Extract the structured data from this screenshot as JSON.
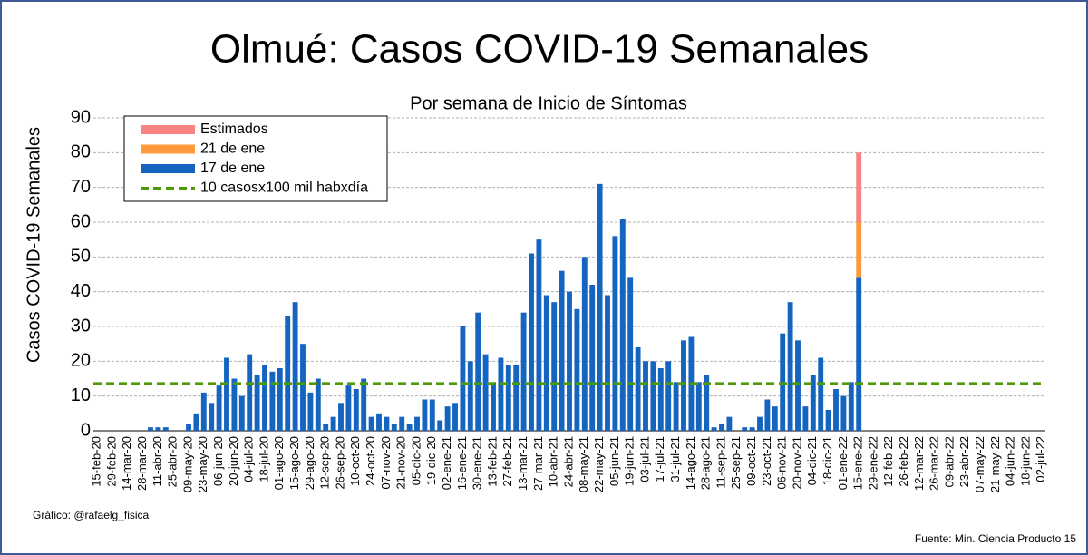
{
  "chart_data": {
    "type": "bar",
    "stacked": true,
    "title": "Olmué: Casos COVID-19 Semanales",
    "subtitle": "Por semana de Inicio de Síntomas",
    "y_label": "Casos COVID-19 Semanales",
    "credit": "Gráfico: @rafaelg_fisica",
    "source": "Fuente: Min. Ciencia Producto 15",
    "categories": [
      "15-feb-20",
      null,
      "29-feb-20",
      null,
      "14-mar-20",
      null,
      "28-mar-20",
      null,
      "11-abr-20",
      null,
      "25-abr-20",
      null,
      "09-may-20",
      null,
      "23-may-20",
      null,
      "06-jun-20",
      null,
      "20-jun-20",
      null,
      "04-jul-20",
      null,
      "18-jul-20",
      null,
      "01-ago-20",
      null,
      "15-ago-20",
      null,
      "29-ago-20",
      null,
      "12-sep-20",
      null,
      "26-sep-20",
      null,
      "10-oct-20",
      null,
      "24-oct-20",
      null,
      "07-nov-20",
      null,
      "21-nov-20",
      null,
      "05-dic-20",
      null,
      "19-dic-20",
      null,
      "02-ene-21",
      null,
      "16-ene-21",
      null,
      "30-ene-21",
      null,
      "13-feb-21",
      null,
      "27-feb-21",
      null,
      "13-mar-21",
      null,
      "27-mar-21",
      null,
      "10-abr-21",
      null,
      "24-abr-21",
      null,
      "08-may-21",
      null,
      "22-may-21",
      null,
      "05-jun-21",
      null,
      "19-jun-21",
      null,
      "03-jul-21",
      null,
      "17-jul-21",
      null,
      "31-jul-21",
      null,
      "14-ago-21",
      null,
      "28-ago-21",
      null,
      "11-sep-21",
      null,
      "25-sep-21",
      null,
      "09-oct-21",
      null,
      "23-oct-21",
      null,
      "06-nov-21",
      null,
      "20-nov-21",
      null,
      "04-dic-21",
      null,
      "18-dic-21",
      null,
      "01-ene-22",
      null,
      "15-ene-22",
      null,
      "29-ene-22",
      null,
      "12-feb-22",
      null,
      "26-feb-22",
      null,
      "12-mar-22",
      null,
      "26-mar-22",
      null,
      "09-abr-22",
      null,
      "23-abr-22",
      null,
      "07-may-22",
      null,
      "21-may-22",
      null,
      "04-jun-22",
      null,
      "18-jun-22",
      null,
      "02-jul-22"
    ],
    "series": [
      {
        "name": "17 de ene",
        "color": "#1565c0",
        "values": [
          0,
          0,
          0,
          0,
          0,
          0,
          0,
          1,
          1,
          1,
          0,
          0,
          2,
          5,
          11,
          8,
          13,
          21,
          15,
          10,
          22,
          16,
          19,
          17,
          18,
          33,
          37,
          25,
          11,
          15,
          2,
          4,
          8,
          13,
          12,
          15,
          4,
          5,
          4,
          2,
          4,
          2,
          4,
          9,
          9,
          3,
          7,
          8,
          30,
          20,
          34,
          22,
          14,
          21,
          19,
          19,
          34,
          51,
          55,
          39,
          37,
          46,
          40,
          35,
          50,
          42,
          71,
          39,
          56,
          61,
          44,
          24,
          20,
          20,
          18,
          20,
          14,
          26,
          27,
          14,
          16,
          1,
          2,
          4,
          0,
          1,
          1,
          4,
          9,
          7,
          28,
          37,
          26,
          7,
          16,
          21,
          6,
          12,
          10,
          14,
          44,
          null,
          null,
          null,
          null,
          null,
          null,
          null,
          null,
          null,
          null,
          null,
          null,
          null,
          null,
          null,
          null,
          null,
          null,
          null,
          null,
          null,
          null,
          null,
          null
        ]
      },
      {
        "name": "21 de ene",
        "color": "#ff9a3c",
        "values": [
          null,
          null,
          null,
          null,
          null,
          null,
          null,
          null,
          null,
          null,
          null,
          null,
          null,
          null,
          null,
          null,
          null,
          null,
          null,
          null,
          null,
          null,
          null,
          null,
          null,
          null,
          null,
          null,
          null,
          null,
          null,
          null,
          null,
          null,
          null,
          null,
          null,
          null,
          null,
          null,
          null,
          null,
          null,
          null,
          null,
          null,
          null,
          null,
          null,
          null,
          null,
          null,
          null,
          null,
          null,
          null,
          null,
          null,
          null,
          null,
          null,
          null,
          null,
          null,
          null,
          null,
          null,
          null,
          null,
          null,
          null,
          null,
          null,
          null,
          null,
          null,
          null,
          null,
          null,
          null,
          null,
          null,
          null,
          null,
          null,
          null,
          null,
          null,
          null,
          null,
          null,
          null,
          null,
          null,
          null,
          null,
          null,
          null,
          null,
          null,
          16,
          null,
          null,
          null,
          null,
          null,
          null,
          null,
          null,
          null,
          null,
          null,
          null,
          null,
          null,
          null,
          null,
          null,
          null,
          null,
          null,
          null,
          null,
          null,
          null
        ]
      },
      {
        "name": "Estimados",
        "color": "#f98383",
        "values": [
          null,
          null,
          null,
          null,
          null,
          null,
          null,
          null,
          null,
          null,
          null,
          null,
          null,
          null,
          null,
          null,
          null,
          null,
          null,
          null,
          null,
          null,
          null,
          null,
          null,
          null,
          null,
          null,
          null,
          null,
          null,
          null,
          null,
          null,
          null,
          null,
          null,
          null,
          null,
          null,
          null,
          null,
          null,
          null,
          null,
          null,
          null,
          null,
          null,
          null,
          null,
          null,
          null,
          null,
          null,
          null,
          null,
          null,
          null,
          null,
          null,
          null,
          null,
          null,
          null,
          null,
          null,
          null,
          null,
          null,
          null,
          null,
          null,
          null,
          null,
          null,
          null,
          null,
          null,
          null,
          null,
          null,
          null,
          null,
          null,
          null,
          null,
          null,
          null,
          null,
          null,
          null,
          null,
          null,
          null,
          null,
          null,
          null,
          null,
          null,
          20,
          null,
          null,
          null,
          null,
          null,
          null,
          null,
          null,
          null,
          null,
          null,
          null,
          null,
          null,
          null,
          null,
          null,
          null,
          null,
          null,
          null,
          null,
          null,
          null
        ]
      }
    ],
    "reference_line": {
      "name": "10 casosx100 mil habxdía",
      "value": 13.6,
      "color": "#4e9a06"
    },
    "ylim": [
      0,
      90
    ],
    "yticks": [
      0,
      10,
      20,
      30,
      40,
      50,
      60,
      70,
      80,
      90
    ],
    "grid": true,
    "legend": "top-left"
  }
}
